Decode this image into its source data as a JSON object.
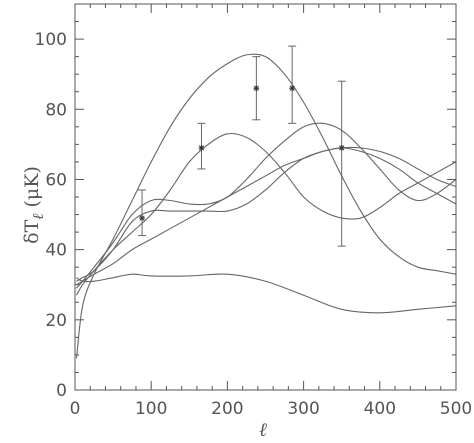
{
  "chart_data": {
    "type": "line",
    "title": "",
    "xlabel": "ℓ",
    "ylabel": "δT",
    "ylabel_sub": "ℓ",
    "ylabel_unit": "(μK)",
    "xlim": [
      0,
      500
    ],
    "ylim": [
      0,
      110
    ],
    "xticks": [
      0,
      100,
      200,
      300,
      400,
      500
    ],
    "yticks": [
      0,
      20,
      40,
      60,
      80,
      100
    ],
    "grid": false,
    "line_color": "#666666",
    "series": [
      {
        "x": [
          2,
          10,
          25,
          50,
          75,
          100,
          125,
          150,
          175,
          200,
          225,
          250,
          275,
          300,
          325,
          350,
          375,
          400,
          425,
          450,
          475,
          500
        ],
        "y": [
          9,
          24,
          33,
          43,
          54,
          65,
          75,
          83,
          89,
          93,
          95.5,
          95,
          90,
          82,
          72,
          61,
          51,
          43,
          38,
          35,
          34,
          33
        ]
      },
      {
        "x": [
          2,
          10,
          25,
          50,
          75,
          100,
          125,
          150,
          175,
          200,
          225,
          250,
          275,
          300,
          325,
          350,
          375,
          400,
          425,
          450,
          475,
          500
        ],
        "y": [
          27,
          30,
          34,
          40,
          45,
          50,
          57,
          65,
          70,
          73,
          72,
          68,
          62,
          55,
          51,
          49,
          49,
          52,
          56,
          59,
          62,
          65
        ]
      },
      {
        "x": [
          2,
          10,
          25,
          50,
          75,
          100,
          125,
          150,
          175,
          200,
          225,
          250,
          275,
          300,
          325,
          350,
          375,
          400,
          425,
          450,
          475,
          500
        ],
        "y": [
          29,
          31,
          35,
          42,
          50,
          54,
          54,
          53,
          53,
          55,
          60,
          66,
          71,
          75,
          76,
          74,
          69,
          63,
          57,
          54,
          56,
          60
        ]
      },
      {
        "x": [
          2,
          10,
          25,
          50,
          75,
          100,
          125,
          150,
          175,
          200,
          225,
          250,
          275,
          300,
          325,
          350,
          375,
          400,
          425,
          450,
          475,
          500
        ],
        "y": [
          31,
          32,
          34,
          40,
          48,
          51,
          51,
          51,
          51,
          51,
          53,
          57,
          62,
          66,
          68,
          69,
          68,
          66,
          63,
          59,
          56,
          53
        ]
      },
      {
        "x": [
          2,
          10,
          25,
          50,
          75,
          100,
          125,
          150,
          175,
          200,
          225,
          250,
          275,
          300,
          325,
          350,
          375,
          400,
          425,
          450,
          475,
          500
        ],
        "y": [
          30,
          31,
          33,
          36,
          40,
          43,
          46,
          49,
          52,
          55,
          58,
          61,
          64,
          66,
          68,
          69,
          69,
          68,
          66,
          63,
          60,
          58
        ]
      },
      {
        "x": [
          2,
          10,
          25,
          50,
          75,
          100,
          150,
          200,
          250,
          300,
          350,
          400,
          450,
          500
        ],
        "y": [
          32,
          31,
          31,
          32,
          33,
          32.5,
          32.5,
          33,
          31,
          27,
          23,
          22,
          23,
          24
        ]
      }
    ],
    "data_points": [
      {
        "x": 88,
        "y": 49,
        "ylo": 44,
        "yhi": 57
      },
      {
        "x": 166,
        "y": 69,
        "ylo": 63,
        "yhi": 76
      },
      {
        "x": 238,
        "y": 86,
        "ylo": 77,
        "yhi": 95
      },
      {
        "x": 285,
        "y": 86,
        "ylo": 76,
        "yhi": 98
      },
      {
        "x": 350,
        "y": 69,
        "ylo": 41,
        "yhi": 88
      }
    ]
  }
}
